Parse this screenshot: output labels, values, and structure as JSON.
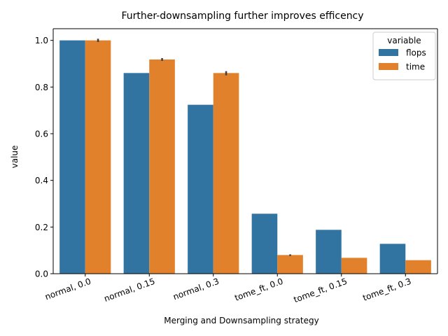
{
  "chart_data": {
    "type": "bar",
    "title": "Further-downsampling further improves efficency",
    "xlabel": "Merging and Downsampling strategy",
    "ylabel": "value",
    "categories": [
      "normal, 0.0",
      "normal, 0.15",
      "normal, 0.3",
      "tome_ft, 0.0",
      "tome_ft, 0.15",
      "tome_ft, 0.3"
    ],
    "ylim": [
      0,
      1.05
    ],
    "yticks": [
      "0.0",
      "0.2",
      "0.4",
      "0.6",
      "0.8",
      "1.0"
    ],
    "legend": {
      "title": "variable",
      "placement": "upper right"
    },
    "grid": false,
    "series": [
      {
        "name": "flops",
        "color": "#3274a1",
        "values": [
          1.0,
          0.86,
          0.724,
          0.257,
          0.188,
          0.128
        ],
        "err": [
          null,
          null,
          null,
          null,
          null,
          null
        ]
      },
      {
        "name": "time",
        "color": "#e1812c",
        "values": [
          1.0,
          0.918,
          0.86,
          0.08,
          0.068,
          0.058
        ],
        "err": [
          [
            0.993,
            1.007
          ],
          [
            0.912,
            0.924
          ],
          [
            0.85,
            0.868
          ],
          [
            0.076,
            0.083
          ],
          null,
          null
        ]
      }
    ]
  }
}
